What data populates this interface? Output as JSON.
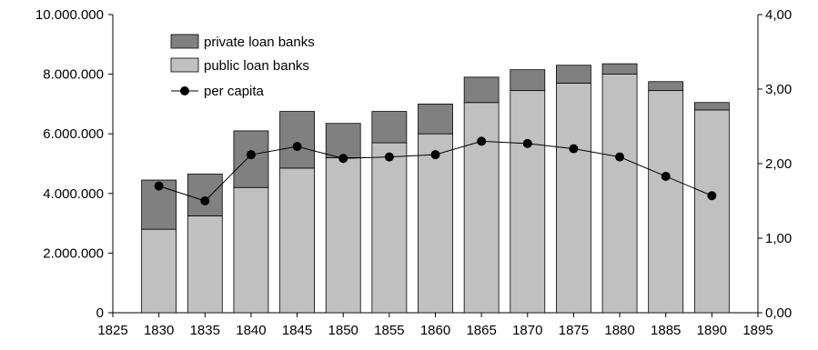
{
  "chart_data": {
    "type": "bar",
    "stacked": true,
    "x": [
      1830,
      1835,
      1840,
      1845,
      1850,
      1855,
      1860,
      1865,
      1870,
      1875,
      1880,
      1885,
      1890
    ],
    "x_ticks": [
      "1825",
      "1830",
      "1835",
      "1840",
      "1845",
      "1850",
      "1855",
      "1860",
      "1865",
      "1870",
      "1875",
      "1880",
      "1885",
      "1890",
      "1895"
    ],
    "xlim": [
      1825,
      1895
    ],
    "y_left_ticks": [
      "0",
      "2.000.000",
      "4.000.000",
      "6.000.000",
      "8.000.000",
      "10.000.000"
    ],
    "ylim_left": [
      0,
      10000000
    ],
    "y_right_ticks": [
      "0,00",
      "1,00",
      "2,00",
      "3,00",
      "4,00"
    ],
    "ylim_right": [
      0,
      4
    ],
    "legend_position": "top-left",
    "grid": false,
    "series": [
      {
        "name": "public loan banks",
        "axis": "left",
        "kind": "bar",
        "color": "#c0c0c0",
        "values": [
          2800000,
          3250000,
          4200000,
          4850000,
          5200000,
          5700000,
          6000000,
          7050000,
          7450000,
          7700000,
          8000000,
          7450000,
          6800000
        ]
      },
      {
        "name": "private loan banks",
        "axis": "left",
        "kind": "bar",
        "color": "#808080",
        "values": [
          1650000,
          1400000,
          1900000,
          1900000,
          1150000,
          1050000,
          1000000,
          850000,
          700000,
          600000,
          350000,
          300000,
          250000
        ]
      },
      {
        "name": "per capita",
        "axis": "right",
        "kind": "line",
        "color": "#000000",
        "values": [
          1.7,
          1.5,
          2.12,
          2.23,
          2.07,
          2.09,
          2.12,
          2.3,
          2.27,
          2.2,
          2.09,
          1.83,
          1.57
        ]
      }
    ]
  }
}
